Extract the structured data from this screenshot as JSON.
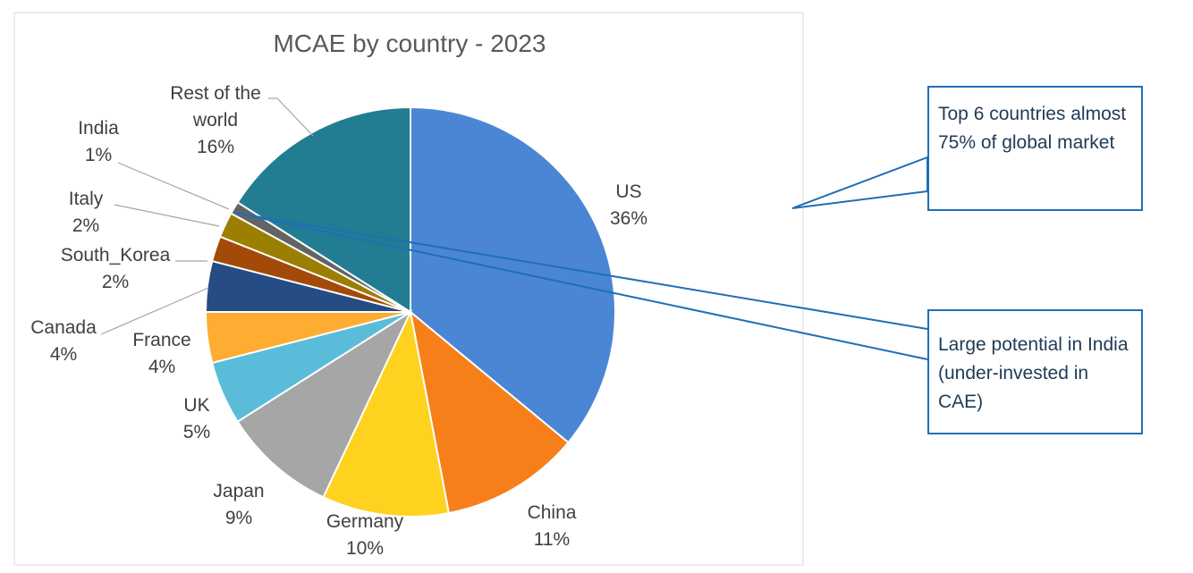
{
  "chart_data": {
    "type": "pie",
    "title": "MCAE by country - 2023",
    "slices": [
      {
        "label": "US",
        "value": 36,
        "value_label": "36%",
        "color": "#4a86d4"
      },
      {
        "label": "China",
        "value": 11,
        "value_label": "11%",
        "color": "#f77f1a"
      },
      {
        "label": "Germany",
        "value": 10,
        "value_label": "10%",
        "color": "#ffd21f"
      },
      {
        "label": "Japan",
        "value": 9,
        "value_label": "9%",
        "color": "#a6a6a6"
      },
      {
        "label": "UK",
        "value": 5,
        "value_label": "5%",
        "color": "#5bbcd9"
      },
      {
        "label": "France",
        "value": 4,
        "value_label": "4%",
        "color": "#ffac33"
      },
      {
        "label": "Canada",
        "value": 4,
        "value_label": "4%",
        "color": "#264c84"
      },
      {
        "label": "South_Korea",
        "value": 2,
        "value_label": "2%",
        "color": "#a3490a"
      },
      {
        "label": "Italy",
        "value": 2,
        "value_label": "2%",
        "color": "#9a7f00"
      },
      {
        "label": "India",
        "value": 1,
        "value_label": "1%",
        "color": "#636363"
      },
      {
        "label": "Rest of the world",
        "value": 16,
        "value_label": "16%",
        "color": "#237d92"
      }
    ],
    "start_angle_deg": 0,
    "direction": "clockwise"
  },
  "callouts": {
    "top": "Top 6 countries almost 75% of global market",
    "bottom": "Large potential in India (under-invested in CAE)"
  }
}
